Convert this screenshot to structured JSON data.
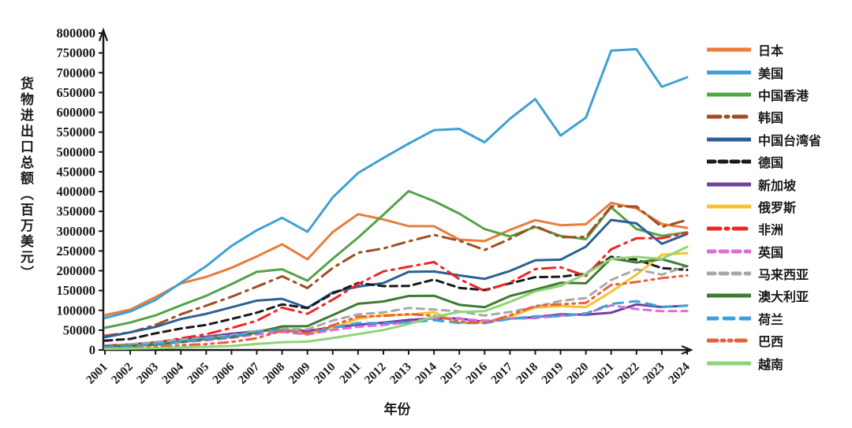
{
  "chart_data": {
    "type": "line",
    "title": "",
    "xlabel": "年份",
    "ylabel": "货物进出口总额（百万美元）",
    "ylim": [
      0,
      800000
    ],
    "ytick_step": 50000,
    "grid": false,
    "legend_position": "right",
    "yticks": [
      0,
      50000,
      100000,
      150000,
      200000,
      250000,
      300000,
      350000,
      400000,
      450000,
      500000,
      550000,
      600000,
      650000,
      700000,
      750000,
      800000
    ],
    "x": [
      2001,
      2002,
      2003,
      2004,
      2005,
      2006,
      2007,
      2008,
      2009,
      2010,
      2011,
      2012,
      2013,
      2014,
      2015,
      2016,
      2017,
      2018,
      2019,
      2020,
      2021,
      2022,
      2023,
      2024
    ],
    "series": [
      {
        "id": "japan",
        "name": "日本",
        "color": "#E87D3C",
        "dash": "",
        "values": [
          87800,
          101900,
          133600,
          167900,
          184400,
          207400,
          236000,
          266800,
          228900,
          297800,
          342900,
          329500,
          312600,
          312400,
          278700,
          274800,
          303000,
          327700,
          315000,
          317500,
          371400,
          357400,
          318000,
          308300
        ]
      },
      {
        "id": "usa",
        "name": "美国",
        "color": "#3FA0D6",
        "dash": "",
        "values": [
          80500,
          97200,
          126300,
          169600,
          211600,
          262700,
          302100,
          333700,
          298300,
          385300,
          446700,
          484700,
          521000,
          555100,
          558300,
          524300,
          583700,
          633500,
          541200,
          586700,
          755600,
          759400,
          664500,
          688300
        ]
      },
      {
        "id": "hong-kong",
        "name": "中国香港",
        "color": "#52A447",
        "dash": "",
        "values": [
          56000,
          69200,
          87400,
          112700,
          136700,
          166200,
          197300,
          203700,
          174900,
          230600,
          283500,
          341500,
          401000,
          376000,
          344300,
          305300,
          286600,
          310600,
          288000,
          279600,
          360200,
          305300,
          288100,
          297100
        ]
      },
      {
        "id": "south-korea",
        "name": "韩国",
        "color": "#A14D21",
        "dash": "16 7 3 7",
        "values": [
          35900,
          44100,
          63200,
          90100,
          111900,
          134300,
          159900,
          186100,
          156200,
          207200,
          245600,
          256300,
          274200,
          290500,
          275800,
          252600,
          280300,
          313400,
          284500,
          285300,
          362400,
          362300,
          310700,
          328100
        ]
      },
      {
        "id": "taiwan",
        "name": "中国台湾省",
        "color": "#2D6096",
        "dash": "",
        "values": [
          32300,
          44600,
          58400,
          78300,
          91200,
          107800,
          124500,
          129200,
          106200,
          145400,
          160000,
          168900,
          197200,
          198300,
          188200,
          179600,
          199400,
          226200,
          228000,
          260800,
          328300,
          319700,
          268000,
          293000
        ]
      },
      {
        "id": "germany",
        "name": "德国",
        "color": "#1A1A1A",
        "dash": "9 6",
        "values": [
          23500,
          27800,
          41900,
          54100,
          63300,
          78200,
          94100,
          115000,
          105700,
          142400,
          169200,
          161100,
          161600,
          177800,
          156800,
          151300,
          168100,
          183900,
          184900,
          192400,
          235200,
          228000,
          206800,
          201900
        ]
      },
      {
        "id": "singapore",
        "name": "新加坡",
        "color": "#7040A0",
        "dash": "",
        "values": [
          10900,
          14000,
          19400,
          26700,
          33200,
          40900,
          47200,
          52400,
          47900,
          57100,
          63700,
          69300,
          75900,
          79700,
          79700,
          70600,
          79200,
          82800,
          89900,
          89000,
          94100,
          115100,
          108400,
          112000
        ]
      },
      {
        "id": "russia",
        "name": "俄罗斯",
        "color": "#F6C331",
        "dash": "",
        "values": [
          10700,
          11900,
          15800,
          21200,
          29100,
          33400,
          48200,
          56800,
          38800,
          55400,
          79200,
          88200,
          89200,
          95300,
          68000,
          69500,
          84000,
          107100,
          110800,
          107800,
          146900,
          190300,
          240100,
          244800
        ]
      },
      {
        "id": "africa",
        "name": "非洲",
        "color": "#EE2724",
        "dash": "16 7 3 7",
        "values": [
          10800,
          12400,
          18500,
          29500,
          39700,
          55500,
          73600,
          106800,
          91100,
          127000,
          166200,
          198500,
          210200,
          221900,
          179000,
          149100,
          170000,
          204200,
          208700,
          187000,
          254300,
          282100,
          282100,
          295600
        ]
      },
      {
        "id": "uk",
        "name": "英国",
        "color": "#D96FD8",
        "dash": "9 7",
        "values": [
          10300,
          11400,
          14400,
          19700,
          24500,
          30300,
          39400,
          45600,
          39100,
          50100,
          58700,
          63100,
          70000,
          80900,
          78500,
          74300,
          79000,
          80400,
          86300,
          92300,
          112700,
          103300,
          97900,
          98400
        ]
      },
      {
        "id": "malaysia",
        "name": "马来西亚",
        "color": "#A8A8A8",
        "dash": "9 7",
        "values": [
          9400,
          14300,
          20100,
          26300,
          30700,
          37100,
          46400,
          53500,
          52000,
          74200,
          90000,
          94800,
          106100,
          102000,
          97400,
          86800,
          96000,
          108600,
          124000,
          131200,
          176800,
          203600,
          190200,
          212000
        ]
      },
      {
        "id": "australia",
        "name": "澳大利亚",
        "color": "#3E7B33",
        "dash": "",
        "values": [
          9000,
          10400,
          13600,
          20400,
          27300,
          33000,
          43800,
          59700,
          60100,
          88100,
          116700,
          122300,
          136400,
          136900,
          114000,
          107800,
          136200,
          152200,
          169600,
          168300,
          231200,
          220900,
          229200,
          211300
        ]
      },
      {
        "id": "netherlands",
        "name": "荷兰",
        "color": "#3FA0D6",
        "dash": "12 9",
        "values": [
          6800,
          8700,
          15400,
          21500,
          28800,
          34500,
          46300,
          51300,
          41800,
          56200,
          68200,
          67600,
          70100,
          75100,
          68200,
          67800,
          78400,
          85200,
          85100,
          92000,
          116400,
          123100,
          108800,
          112100
        ]
      },
      {
        "id": "brazil",
        "name": "巴西",
        "color": "#E8603C",
        "dash": "12 6 3 6 3 6",
        "values": [
          3700,
          4500,
          7900,
          12400,
          14800,
          20300,
          29700,
          48700,
          42400,
          62500,
          84200,
          85700,
          90300,
          86600,
          71600,
          67800,
          87500,
          111200,
          115400,
          118900,
          164100,
          171500,
          181500,
          188200
        ]
      },
      {
        "id": "vietnam",
        "name": "越南",
        "color": "#90D478",
        "dash": "",
        "values": [
          2800,
          3300,
          4600,
          6700,
          8200,
          9900,
          15100,
          19500,
          21000,
          30100,
          40200,
          50400,
          65500,
          83600,
          96000,
          98200,
          121300,
          147800,
          162000,
          192300,
          230200,
          234900,
          229800,
          260500
        ]
      }
    ]
  }
}
